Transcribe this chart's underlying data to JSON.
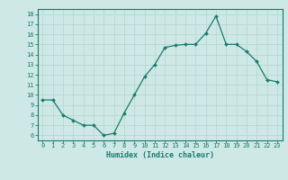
{
  "x": [
    0,
    1,
    2,
    3,
    4,
    5,
    6,
    7,
    8,
    9,
    10,
    11,
    12,
    13,
    14,
    15,
    16,
    17,
    18,
    19,
    20,
    21,
    22,
    23
  ],
  "y": [
    9.5,
    9.5,
    8.0,
    7.5,
    7.0,
    7.0,
    6.0,
    6.2,
    8.2,
    10.0,
    11.8,
    13.0,
    14.7,
    14.9,
    15.0,
    15.0,
    16.1,
    17.8,
    15.0,
    15.0,
    14.3,
    13.3,
    11.5,
    11.3
  ],
  "xlim": [
    -0.5,
    23.5
  ],
  "ylim": [
    5.5,
    18.5
  ],
  "yticks": [
    6,
    7,
    8,
    9,
    10,
    11,
    12,
    13,
    14,
    15,
    16,
    17,
    18
  ],
  "xticks": [
    0,
    1,
    2,
    3,
    4,
    5,
    6,
    7,
    8,
    9,
    10,
    11,
    12,
    13,
    14,
    15,
    16,
    17,
    18,
    19,
    20,
    21,
    22,
    23
  ],
  "xlabel": "Humidex (Indice chaleur)",
  "line_color": "#1a7a6e",
  "marker_color": "#1a7a6e",
  "bg_color": "#cde8e5",
  "grid_color": "#b8d8d4",
  "axes_color": "#1a7a6e",
  "tick_label_color": "#1a7a6e",
  "xlabel_color": "#1a7a6e",
  "bottom_bar_color": "#2a8a7e"
}
